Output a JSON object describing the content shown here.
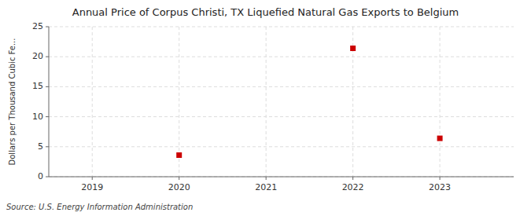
{
  "chart_data": {
    "type": "scatter",
    "title": "Annual Price of Corpus Christi, TX Liquefied Natural Gas Exports to Belgium",
    "ylabel": "Dollars per Thousand Cubic Fe...",
    "source": "Source: U.S. Energy Information Administration",
    "x": [
      2020,
      2022,
      2023
    ],
    "values": [
      3.6,
      21.4,
      6.4
    ],
    "color": "#cc0000",
    "marker": "square",
    "xlim": [
      2018.5,
      2023.85
    ],
    "xticks": [
      2019,
      2020,
      2021,
      2022,
      2023
    ],
    "ylim": [
      0,
      25
    ],
    "yticks": [
      0,
      5,
      10,
      15,
      20,
      25
    ],
    "grid": true
  }
}
